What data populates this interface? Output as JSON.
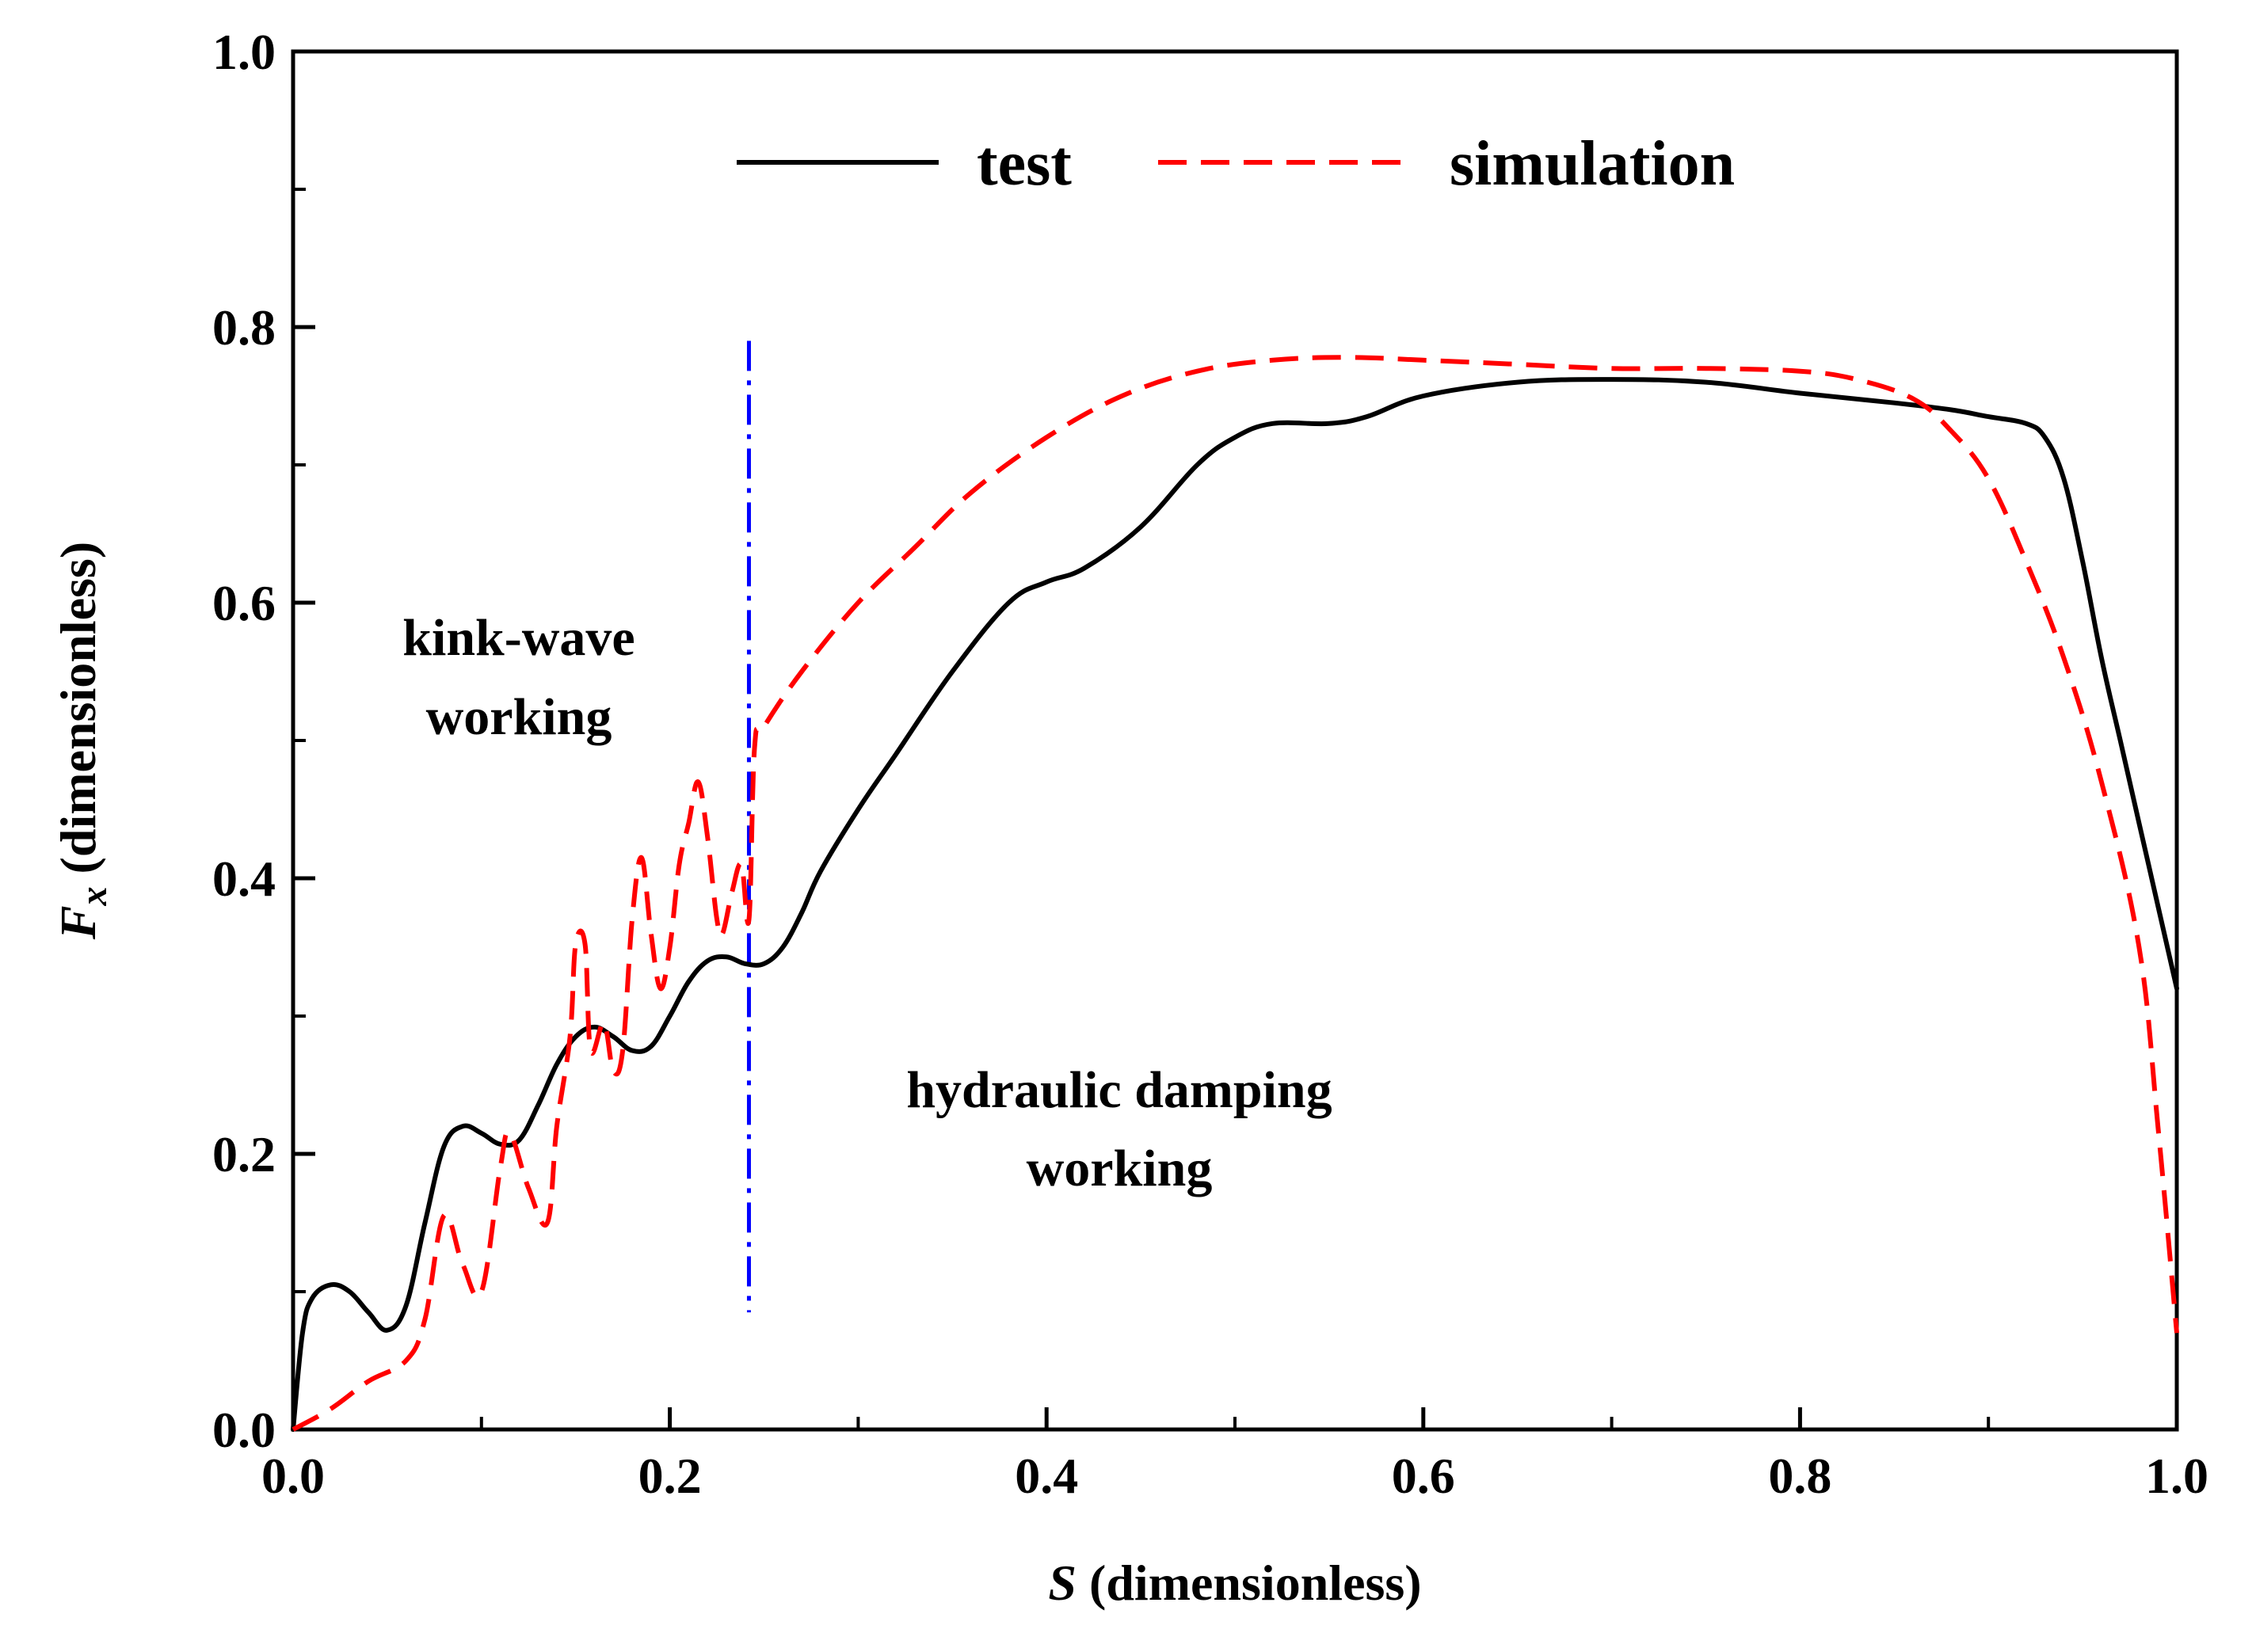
{
  "chart_data": {
    "type": "line",
    "xlabel_symbol": "S",
    "xlabel_unit": "(dimensionless)",
    "ylabel_symbol": "F",
    "ylabel_subscript": "x",
    "ylabel_unit": "(dimensionless)",
    "xlim": [
      0,
      1
    ],
    "ylim": [
      0,
      1
    ],
    "x_major_ticks": [
      0.0,
      0.2,
      0.4,
      0.6,
      0.8,
      1.0
    ],
    "x_tick_labels": [
      "0.0",
      "0.2",
      "0.4",
      "0.6",
      "0.8",
      "1.0"
    ],
    "x_minor_ticks": [
      0.1,
      0.3,
      0.5,
      0.7,
      0.9
    ],
    "y_major_ticks": [
      0.0,
      0.2,
      0.4,
      0.6,
      0.8,
      1.0
    ],
    "y_tick_labels": [
      "0.0",
      "0.2",
      "0.4",
      "0.6",
      "0.8",
      "1.0"
    ],
    "y_minor_ticks": [
      0.1,
      0.3,
      0.5,
      0.7,
      0.9
    ],
    "grid": false,
    "legend_position": "top",
    "series": [
      {
        "name": "test",
        "color": "#000000",
        "style": "solid",
        "x": [
          0.0,
          0.005,
          0.01,
          0.02,
          0.03,
          0.04,
          0.05,
          0.06,
          0.07,
          0.08,
          0.09,
          0.1,
          0.11,
          0.12,
          0.13,
          0.14,
          0.15,
          0.16,
          0.17,
          0.18,
          0.19,
          0.2,
          0.21,
          0.22,
          0.23,
          0.24,
          0.25,
          0.26,
          0.27,
          0.28,
          0.3,
          0.32,
          0.35,
          0.38,
          0.4,
          0.42,
          0.45,
          0.48,
          0.5,
          0.52,
          0.55,
          0.57,
          0.6,
          0.65,
          0.7,
          0.75,
          0.8,
          0.85,
          0.88,
          0.9,
          0.92,
          0.93,
          0.94,
          0.95,
          0.96,
          0.97,
          0.98,
          0.99,
          1.0
        ],
        "y": [
          0.0,
          0.07,
          0.095,
          0.105,
          0.1,
          0.085,
          0.072,
          0.09,
          0.15,
          0.205,
          0.22,
          0.215,
          0.207,
          0.21,
          0.235,
          0.265,
          0.285,
          0.292,
          0.285,
          0.275,
          0.278,
          0.3,
          0.325,
          0.34,
          0.343,
          0.338,
          0.338,
          0.35,
          0.375,
          0.405,
          0.45,
          0.49,
          0.55,
          0.6,
          0.615,
          0.625,
          0.655,
          0.7,
          0.72,
          0.73,
          0.73,
          0.735,
          0.75,
          0.76,
          0.762,
          0.76,
          0.752,
          0.745,
          0.74,
          0.735,
          0.73,
          0.72,
          0.69,
          0.63,
          0.56,
          0.5,
          0.44,
          0.38,
          0.32
        ]
      },
      {
        "name": "simulation",
        "color": "#ff0000",
        "style": "dashed",
        "x": [
          0.0,
          0.02,
          0.04,
          0.06,
          0.07,
          0.08,
          0.09,
          0.1,
          0.11,
          0.115,
          0.125,
          0.135,
          0.14,
          0.147,
          0.15,
          0.155,
          0.158,
          0.165,
          0.17,
          0.175,
          0.18,
          0.185,
          0.19,
          0.195,
          0.2,
          0.205,
          0.21,
          0.215,
          0.22,
          0.225,
          0.228,
          0.233,
          0.238,
          0.242,
          0.245,
          0.25,
          0.27,
          0.3,
          0.33,
          0.36,
          0.4,
          0.44,
          0.48,
          0.52,
          0.56,
          0.6,
          0.65,
          0.7,
          0.75,
          0.8,
          0.83,
          0.86,
          0.88,
          0.9,
          0.92,
          0.94,
          0.96,
          0.98,
          0.99,
          1.0
        ],
        "y": [
          0.0,
          0.015,
          0.035,
          0.05,
          0.08,
          0.155,
          0.12,
          0.1,
          0.19,
          0.215,
          0.175,
          0.15,
          0.22,
          0.285,
          0.352,
          0.352,
          0.275,
          0.295,
          0.26,
          0.275,
          0.37,
          0.415,
          0.36,
          0.32,
          0.35,
          0.41,
          0.44,
          0.47,
          0.43,
          0.37,
          0.36,
          0.39,
          0.41,
          0.37,
          0.495,
          0.51,
          0.55,
          0.6,
          0.64,
          0.68,
          0.72,
          0.75,
          0.768,
          0.776,
          0.778,
          0.776,
          0.773,
          0.77,
          0.77,
          0.768,
          0.762,
          0.748,
          0.725,
          0.69,
          0.63,
          0.56,
          0.47,
          0.35,
          0.22,
          0.07
        ]
      }
    ],
    "divider": {
      "name": "boundary",
      "color": "#0000ff",
      "style": "dash-dot",
      "x": 0.242,
      "y_range": [
        0.085,
        0.79
      ]
    },
    "annotations": [
      {
        "lines": [
          "kink-wave",
          "working"
        ],
        "x": 0.121,
        "y": 0.575
      },
      {
        "lines": [
          "hydraulic damping",
          "working"
        ],
        "x": 0.443,
        "y": 0.225
      }
    ]
  }
}
